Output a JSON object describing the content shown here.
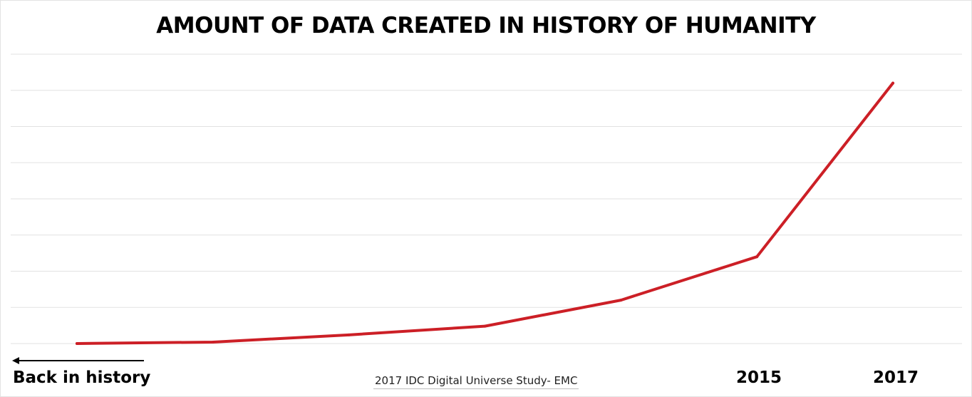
{
  "chart_data": {
    "type": "line",
    "title": "AMOUNT OF DATA CREATED IN HISTORY OF HUMANITY",
    "source": "2017 IDC Digital Universe Study- EMC",
    "x_labels": {
      "history": "Back in history",
      "year_2015": "2015",
      "year_2017": "2017"
    },
    "series": [
      {
        "values": [
          0,
          0.5,
          3,
          6,
          15,
          30,
          90
        ]
      }
    ],
    "ylim": [
      0,
      100
    ],
    "y_gridlines": 8,
    "grid": true,
    "colors": {
      "line": "#cc1f26",
      "grid": "#e2e2e2",
      "axis": "#000000"
    },
    "arrow_direction": "left"
  }
}
